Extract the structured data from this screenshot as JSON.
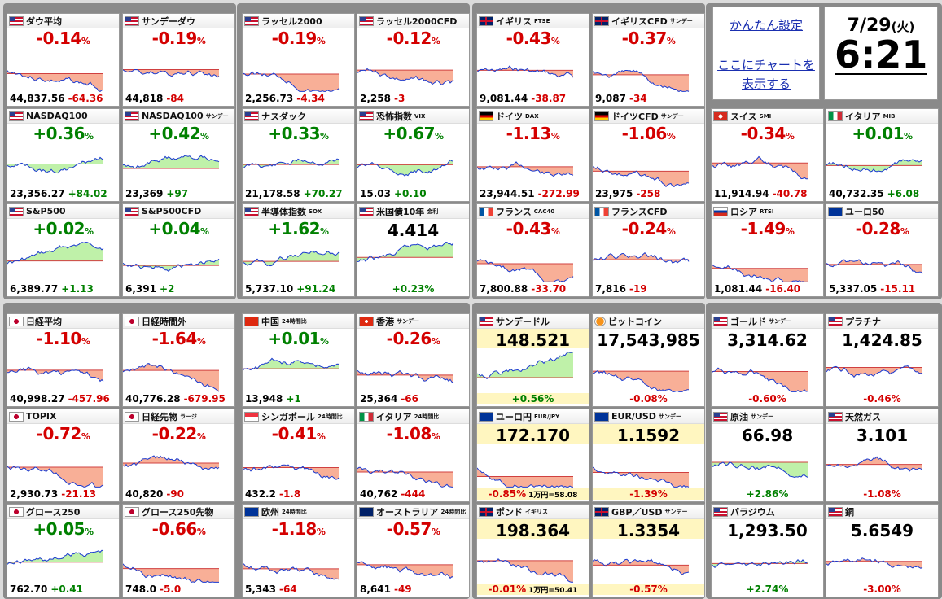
{
  "settings": {
    "simple_setting": "かんたん設定",
    "chart_line1": "ここにチャートを",
    "chart_line2": "表示する"
  },
  "clock": {
    "date": "7/29",
    "weekday": "(火)",
    "time": "6:21"
  },
  "tiles": [
    {
      "name": "ダウ平均",
      "sub": "",
      "flag": "us",
      "pct": "-0.14",
      "dir": "dn",
      "lv": "44,837.56",
      "chg": "-64.36"
    },
    {
      "name": "サンデーダウ",
      "sub": "",
      "flag": "us",
      "pct": "-0.19",
      "dir": "dn",
      "lv": "44,818",
      "chg": "-84"
    },
    {
      "name": "ラッセル2000",
      "sub": "",
      "flag": "us",
      "pct": "-0.19",
      "dir": "dn",
      "lv": "2,256.73",
      "chg": "-4.34"
    },
    {
      "name": "ラッセル2000CFD",
      "sub": "",
      "flag": "us",
      "pct": "-0.12",
      "dir": "dn",
      "lv": "2,258",
      "chg": "-3"
    },
    {
      "name": "イギリス",
      "sub": "FTSE",
      "flag": "uk",
      "pct": "-0.43",
      "dir": "dn",
      "lv": "9,081.44",
      "chg": "-38.87"
    },
    {
      "name": "イギリスCFD",
      "sub": "サンデー",
      "flag": "uk",
      "pct": "-0.37",
      "dir": "dn",
      "lv": "9,087",
      "chg": "-34"
    },
    {
      "name": "NASDAQ100",
      "sub": "",
      "flag": "us",
      "pct": "+0.36",
      "dir": "up",
      "lv": "23,356.27",
      "chg": "+84.02"
    },
    {
      "name": "NASDAQ100",
      "sub": "サンデー",
      "flag": "us",
      "pct": "+0.42",
      "dir": "up",
      "lv": "23,369",
      "chg": "+97"
    },
    {
      "name": "ナスダック",
      "sub": "",
      "flag": "us",
      "pct": "+0.33",
      "dir": "up",
      "lv": "21,178.58",
      "chg": "+70.27"
    },
    {
      "name": "恐怖指数",
      "sub": "VIX",
      "flag": "us",
      "pct": "+0.67",
      "dir": "up",
      "lv": "15.03",
      "chg": "+0.10"
    },
    {
      "name": "ドイツ",
      "sub": "DAX",
      "flag": "de",
      "pct": "-1.13",
      "dir": "dn",
      "lv": "23,944.51",
      "chg": "-272.99"
    },
    {
      "name": "ドイツCFD",
      "sub": "サンデー",
      "flag": "de",
      "pct": "-1.06",
      "dir": "dn",
      "lv": "23,975",
      "chg": "-258"
    },
    {
      "name": "スイス",
      "sub": "SMI",
      "flag": "ch",
      "pct": "-0.34",
      "dir": "dn",
      "lv": "11,914.94",
      "chg": "-40.78"
    },
    {
      "name": "イタリア",
      "sub": "MIB",
      "flag": "it",
      "pct": "+0.01",
      "dir": "up",
      "lv": "40,732.35",
      "chg": "+6.08"
    },
    {
      "name": "S&P500",
      "sub": "",
      "flag": "us",
      "pct": "+0.02",
      "dir": "up",
      "lv": "6,389.77",
      "chg": "+1.13"
    },
    {
      "name": "S&P500CFD",
      "sub": "",
      "flag": "us",
      "pct": "+0.04",
      "dir": "up",
      "lv": "6,391",
      "chg": "+2"
    },
    {
      "name": "半導体指数",
      "sub": "SOX",
      "flag": "us",
      "pct": "+1.62",
      "dir": "up",
      "lv": "5,737.10",
      "chg": "+91.24"
    },
    {
      "name": "米国債10年",
      "sub": "金利",
      "flag": "us",
      "pct": "+0.23",
      "dir": "up",
      "lv": "4.414",
      "chg": "",
      "bond": true
    },
    {
      "name": "フランス",
      "sub": "CAC40",
      "flag": "fr",
      "pct": "-0.43",
      "dir": "dn",
      "lv": "7,800.88",
      "chg": "-33.70"
    },
    {
      "name": "フランスCFD",
      "sub": "",
      "flag": "fr",
      "pct": "-0.24",
      "dir": "dn",
      "lv": "7,816",
      "chg": "-19"
    },
    {
      "name": "ロシア",
      "sub": "RTSI",
      "flag": "ru",
      "pct": "-1.49",
      "dir": "dn",
      "lv": "1,081.44",
      "chg": "-16.40"
    },
    {
      "name": "ユーロ50",
      "sub": "",
      "flag": "eu",
      "pct": "-0.28",
      "dir": "dn",
      "lv": "5,337.05",
      "chg": "-15.11"
    },
    {
      "name": "日経平均",
      "sub": "",
      "flag": "jp",
      "pct": "-1.10",
      "dir": "dn",
      "lv": "40,998.27",
      "chg": "-457.96"
    },
    {
      "name": "日経時間外",
      "sub": "",
      "flag": "jp",
      "pct": "-1.64",
      "dir": "dn",
      "lv": "40,776.28",
      "chg": "-679.95"
    },
    {
      "name": "中国",
      "sub": "24時間比",
      "flag": "cn",
      "pct": "+0.01",
      "dir": "up",
      "lv": "13,948",
      "chg": "+1"
    },
    {
      "name": "香港",
      "sub": "サンデー",
      "flag": "hk",
      "pct": "-0.26",
      "dir": "dn",
      "lv": "25,364",
      "chg": "-66"
    },
    {
      "name": "サンデードル",
      "sub": "",
      "flag": "us",
      "pct": "+0.56",
      "dir": "up",
      "lv": "148.521",
      "chg": "",
      "fx": true
    },
    {
      "name": "ビットコイン",
      "sub": "",
      "flag": "btc",
      "pct": "-0.08",
      "dir": "dn",
      "lv": "17,543,985",
      "chg": "",
      "fx2": true
    },
    {
      "name": "ゴールド",
      "sub": "サンデー",
      "flag": "us",
      "pct": "-0.60",
      "dir": "dn",
      "lv": "3,314.62",
      "chg": "",
      "cm": true
    },
    {
      "name": "プラチナ",
      "sub": "",
      "flag": "us",
      "pct": "-0.46",
      "dir": "dn",
      "lv": "1,424.85",
      "chg": "",
      "cm": true
    },
    {
      "name": "TOPIX",
      "sub": "",
      "flag": "jp",
      "pct": "-0.72",
      "dir": "dn",
      "lv": "2,930.73",
      "chg": "-21.13"
    },
    {
      "name": "日経先物",
      "sub": "ラージ",
      "flag": "jp",
      "pct": "-0.22",
      "dir": "dn",
      "lv": "40,820",
      "chg": "-90"
    },
    {
      "name": "シンガポール",
      "sub": "24時間比",
      "flag": "sg",
      "pct": "-0.41",
      "dir": "dn",
      "lv": "432.2",
      "chg": "-1.8"
    },
    {
      "name": "イタリア",
      "sub": "24時間比",
      "flag": "it",
      "pct": "-1.08",
      "dir": "dn",
      "lv": "40,762",
      "chg": "-444"
    },
    {
      "name": "ユーロ円",
      "sub": "EUR/JPY",
      "flag": "eu",
      "pct": "-0.85",
      "dir": "dn",
      "lv": "172.170",
      "chg": "1万円=58.08",
      "fx": true
    },
    {
      "name": "EUR/USD",
      "sub": "サンデー",
      "flag": "eu",
      "pct": "-1.39",
      "dir": "dn",
      "lv": "1.1592",
      "chg": "",
      "fx": true
    },
    {
      "name": "原油",
      "sub": "サンデー",
      "flag": "us",
      "pct": "+2.86",
      "dir": "up",
      "lv": "66.98",
      "chg": "",
      "cm": true
    },
    {
      "name": "天然ガス",
      "sub": "",
      "flag": "us",
      "pct": "-1.08",
      "dir": "dn",
      "lv": "3.101",
      "chg": "",
      "cm": true
    },
    {
      "name": "グロース250",
      "sub": "",
      "flag": "jp",
      "pct": "+0.05",
      "dir": "up",
      "lv": "762.70",
      "chg": "+0.41"
    },
    {
      "name": "グロース250先物",
      "sub": "",
      "flag": "jp",
      "pct": "-0.66",
      "dir": "dn",
      "lv": "748.0",
      "chg": "-5.0"
    },
    {
      "name": "欧州",
      "sub": "24時間比",
      "flag": "eu",
      "pct": "-1.18",
      "dir": "dn",
      "lv": "5,343",
      "chg": "-64"
    },
    {
      "name": "オーストラリア",
      "sub": "24時間比",
      "flag": "au",
      "pct": "-0.57",
      "dir": "dn",
      "lv": "8,641",
      "chg": "-49"
    },
    {
      "name": "ポンド",
      "sub": "イギリス",
      "flag": "uk",
      "pct": "-0.01",
      "dir": "dn",
      "lv": "198.364",
      "chg": "1万円=50.41",
      "fx": true
    },
    {
      "name": "GBP／USD",
      "sub": "サンデー",
      "flag": "uk",
      "pct": "-0.57",
      "dir": "dn",
      "lv": "1.3354",
      "chg": "",
      "fx": true
    },
    {
      "name": "パラジウム",
      "sub": "",
      "flag": "us",
      "pct": "+2.74",
      "dir": "up",
      "lv": "1,293.50",
      "chg": "",
      "cm": true
    },
    {
      "name": "銅",
      "sub": "",
      "flag": "us",
      "pct": "-3.00",
      "dir": "dn",
      "lv": "5.6549",
      "chg": "",
      "cm": true
    }
  ],
  "colors": {
    "up": "#008000",
    "down": "#d40000",
    "panel": "#8a8a8a"
  }
}
